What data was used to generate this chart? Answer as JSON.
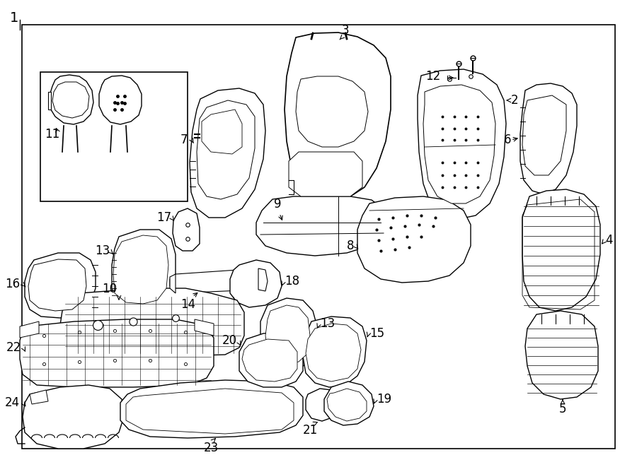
{
  "bg_color": "#ffffff",
  "border_lw": 1.2,
  "label_fs": 12,
  "title_fs": 14
}
